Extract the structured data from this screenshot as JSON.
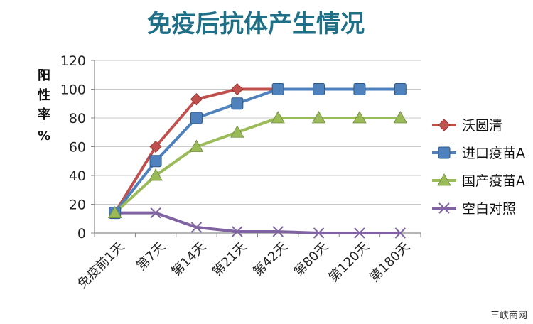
{
  "chart_data": {
    "type": "line",
    "title": "免疫后抗体产生情况",
    "ylabel": [
      "阳",
      "性",
      "率",
      "%"
    ],
    "categories": [
      "免疫前1天",
      "第7天",
      "第14天",
      "第21天",
      "第42天",
      "第80天",
      "第120天",
      "第180天"
    ],
    "ylim": [
      0,
      120
    ],
    "yticks": [
      0,
      20,
      40,
      60,
      80,
      100,
      120
    ],
    "grid": true,
    "legend_position": "right",
    "series": [
      {
        "name": "沃圆清",
        "color": "#c0504d",
        "marker": "diamond",
        "values": [
          14,
          60,
          93,
          100,
          100,
          null,
          null,
          null
        ]
      },
      {
        "name": "进口疫苗A",
        "color": "#4f81bd",
        "marker": "square",
        "values": [
          14,
          50,
          80,
          90,
          100,
          100,
          100,
          100
        ]
      },
      {
        "name": "国产疫苗A",
        "color": "#9bbb59",
        "marker": "triangle",
        "values": [
          14,
          40,
          60,
          70,
          80,
          80,
          80,
          80
        ]
      },
      {
        "name": "空白对照",
        "color": "#8064a2",
        "marker": "x",
        "values": [
          14,
          14,
          4,
          1,
          1,
          0,
          0,
          0
        ]
      }
    ]
  },
  "watermark": "三峡商网"
}
